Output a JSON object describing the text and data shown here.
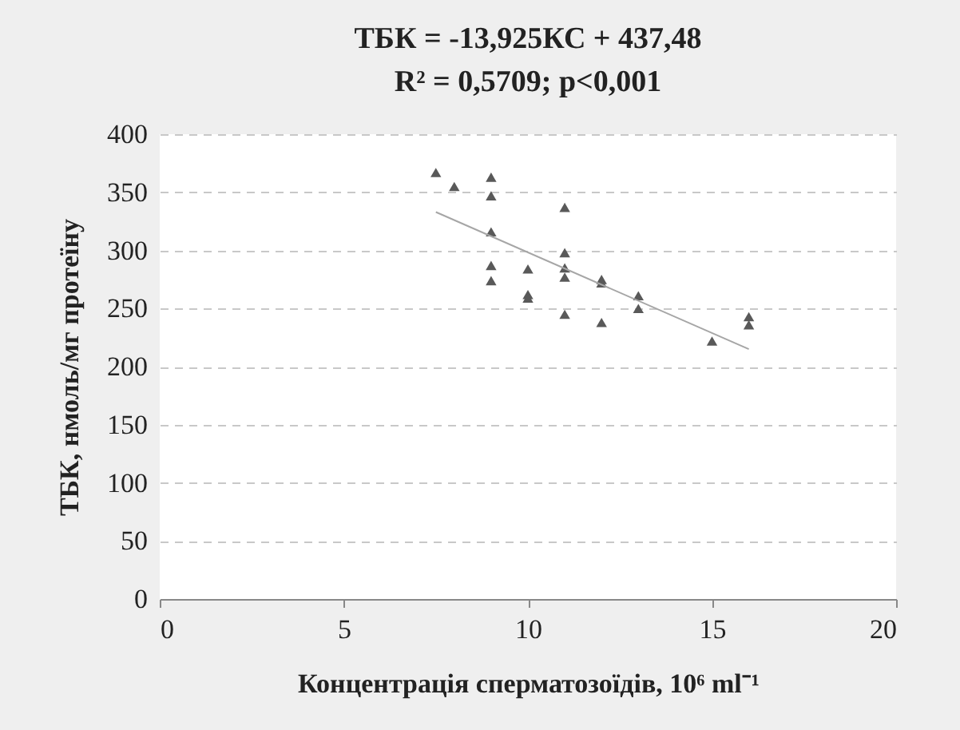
{
  "chart_data": {
    "type": "scatter",
    "title": "ТБК = -13,925КС + 437,48",
    "subtitle": "R² = 0,5709; p<0,001",
    "xlabel": "Концентрація сперматозоїдів, 10⁶ ml⁻¹",
    "ylabel": "ТБК, нмоль/мг протеїну",
    "xlim": [
      0,
      20
    ],
    "xticks": [
      0,
      5,
      10,
      15,
      20
    ],
    "ylim": [
      0,
      400
    ],
    "yticks": [
      0,
      50,
      100,
      150,
      200,
      250,
      300,
      350,
      400
    ],
    "grid": "y",
    "series": [
      {
        "marker": "triangle",
        "color": "#595959",
        "x": [
          7.5,
          8,
          9,
          9,
          9,
          9,
          9,
          10,
          10,
          10,
          11,
          11,
          11,
          11,
          11,
          12,
          12,
          12,
          13,
          13,
          15,
          16,
          16
        ],
        "values": [
          367,
          355,
          363,
          347,
          316,
          287,
          274,
          284,
          262,
          259,
          337,
          298,
          285,
          277,
          245,
          275,
          272,
          238,
          261,
          250,
          222,
          243,
          236
        ]
      },
      {
        "type": "line",
        "marker": "none",
        "color": "#a6a6a6",
        "x": [
          7.5,
          16
        ],
        "values": [
          333,
          215
        ]
      }
    ]
  }
}
